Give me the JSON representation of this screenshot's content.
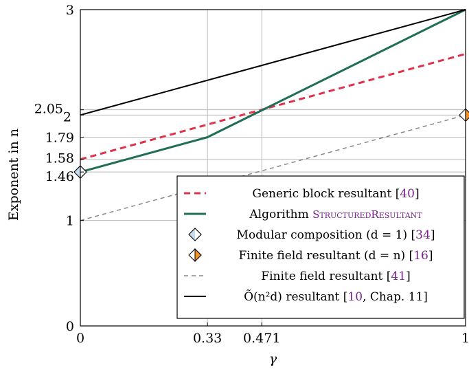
{
  "chart_data": {
    "type": "line",
    "xlabel": "γ",
    "ylabel": "Exponent in n",
    "xlim": [
      0,
      1
    ],
    "ylim": [
      0,
      3
    ],
    "grid": true,
    "legend_position": "bottom-right",
    "x_ticks": [
      "0",
      "0.33",
      "0.471",
      "1"
    ],
    "y_ticks": [
      "0",
      "1",
      "1.46",
      "1.58",
      "1.79",
      "2",
      "2.05",
      "3"
    ],
    "series": [
      {
        "name": "Generic block resultant [40]",
        "style": "dashed",
        "color": "#e0314b",
        "points": [
          [
            0,
            1.58
          ],
          [
            1,
            2.58
          ]
        ]
      },
      {
        "name": "Algorithm StructuredResultant",
        "style": "solid",
        "color": "#1f6e55",
        "points": [
          [
            0,
            1.46
          ],
          [
            0.33,
            1.79
          ],
          [
            1,
            3.0
          ]
        ]
      },
      {
        "name": "Modular composition (d = 1) [34]",
        "style": "marker",
        "color": "#c5dcef",
        "points": [
          [
            0,
            1.46
          ]
        ]
      },
      {
        "name": "Finite field resultant (d = n) [16]",
        "style": "marker",
        "color": "#f39221",
        "points": [
          [
            1,
            2.0
          ]
        ]
      },
      {
        "name": "Finite field resultant [41]",
        "style": "dashed",
        "color": "#888888",
        "points": [
          [
            0,
            1.0
          ],
          [
            1,
            2.0
          ]
        ]
      },
      {
        "name": "Õ(n²d) resultant [10, Chap. 11]",
        "style": "solid",
        "color": "#000000",
        "points": [
          [
            0,
            2.0
          ],
          [
            1,
            3.0
          ]
        ]
      }
    ]
  },
  "legend": {
    "items": [
      {
        "pre": "Generic block resultant [",
        "cite": "40",
        "post": "]"
      },
      {
        "pre": "Algorithm ",
        "cite": "StructuredResultant",
        "post": ""
      },
      {
        "pre": "Modular composition (d = 1) [",
        "cite": "34",
        "post": "]"
      },
      {
        "pre": "Finite field resultant (d = n) [",
        "cite": "16",
        "post": "]"
      },
      {
        "pre": "Finite field resultant [",
        "cite": "41",
        "post": "]"
      },
      {
        "pre": "Õ(n²d) resultant [",
        "cite": "10",
        "post": ", Chap. 11]"
      }
    ]
  }
}
